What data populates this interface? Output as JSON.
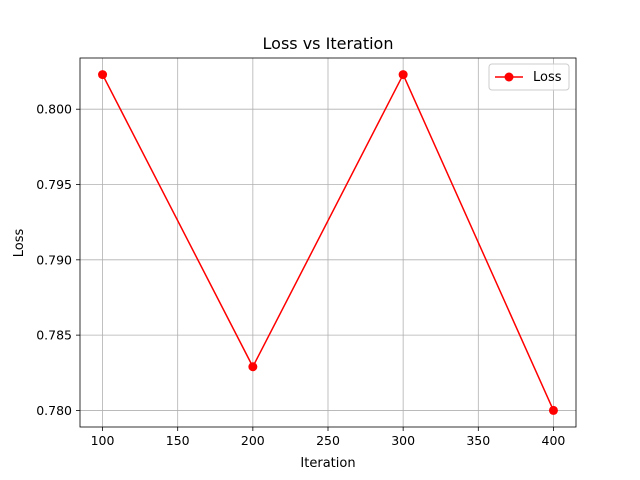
{
  "chart_data": {
    "type": "line",
    "title": "Loss vs Iteration",
    "xlabel": "Iteration",
    "ylabel": "Loss",
    "xlim": [
      85,
      415
    ],
    "ylim": [
      0.7789,
      0.8034
    ],
    "xticks": [
      100,
      150,
      200,
      250,
      300,
      350,
      400
    ],
    "yticks": [
      0.78,
      0.785,
      0.79,
      0.795,
      0.8
    ],
    "xtick_labels": [
      "100",
      "150",
      "200",
      "250",
      "300",
      "350",
      "400"
    ],
    "ytick_labels": [
      "0.780",
      "0.785",
      "0.790",
      "0.795",
      "0.800"
    ],
    "grid": true,
    "legend_position": "top-right",
    "series": [
      {
        "name": "Loss",
        "color": "#ff0000",
        "marker": "circle",
        "x": [
          100,
          200,
          300,
          400
        ],
        "y": [
          0.8023,
          0.7829,
          0.8023,
          0.78
        ]
      }
    ]
  }
}
